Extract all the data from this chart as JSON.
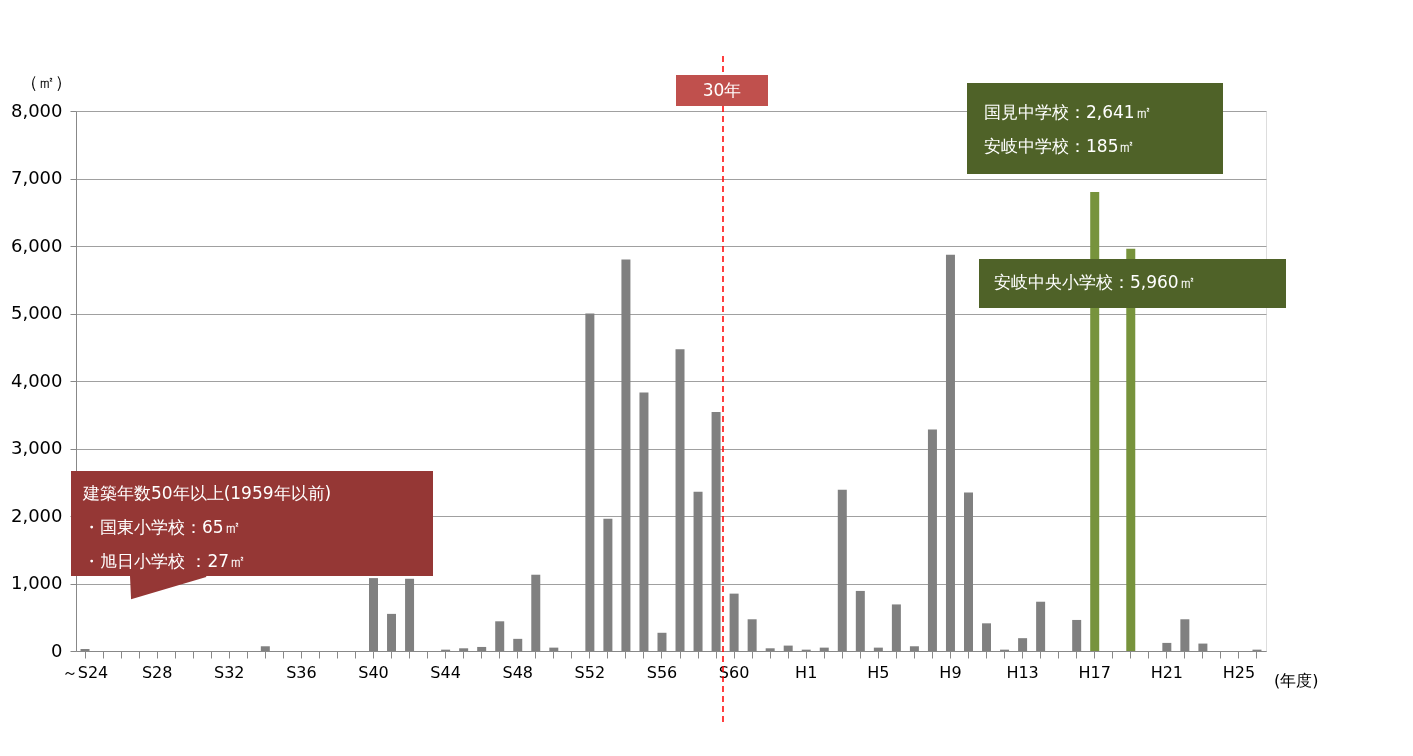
{
  "chart_data": {
    "type": "bar",
    "ylabel": "（㎡）",
    "xlabel": "(年度)",
    "categories": [
      "～S24",
      null,
      null,
      null,
      "S28",
      null,
      null,
      null,
      "S32",
      null,
      null,
      null,
      "S36",
      null,
      null,
      null,
      "S40",
      null,
      null,
      null,
      "S44",
      null,
      null,
      null,
      "S48",
      null,
      null,
      null,
      "S52",
      null,
      null,
      null,
      "S56",
      null,
      null,
      null,
      "S60",
      null,
      null,
      null,
      "H1",
      null,
      null,
      null,
      "H5",
      null,
      null,
      null,
      "H9",
      null,
      null,
      null,
      "H13",
      null,
      null,
      null,
      "H17",
      null,
      null,
      null,
      "H21",
      null,
      null,
      null,
      "H25",
      null
    ],
    "values": [
      30,
      0,
      0,
      0,
      0,
      0,
      0,
      0,
      0,
      0,
      70,
      0,
      0,
      0,
      0,
      0,
      1080,
      550,
      1070,
      0,
      20,
      40,
      60,
      440,
      180,
      1130,
      50,
      0,
      5000,
      1960,
      5800,
      3830,
      270,
      4470,
      2360,
      3540,
      850,
      470,
      40,
      80,
      20,
      50,
      2390,
      890,
      50,
      690,
      70,
      3280,
      5870,
      2350,
      410,
      20,
      190,
      730,
      0,
      460,
      6800,
      0,
      5960,
      0,
      120,
      470,
      110,
      0,
      0,
      20
    ],
    "colors": [
      "#808080",
      "#808080",
      "#808080",
      "#808080",
      "#808080",
      "#808080",
      "#808080",
      "#808080",
      "#808080",
      "#808080",
      "#808080",
      "#808080",
      "#808080",
      "#808080",
      "#808080",
      "#808080",
      "#808080",
      "#808080",
      "#808080",
      "#808080",
      "#808080",
      "#808080",
      "#808080",
      "#808080",
      "#808080",
      "#808080",
      "#808080",
      "#808080",
      "#808080",
      "#808080",
      "#808080",
      "#808080",
      "#808080",
      "#808080",
      "#808080",
      "#808080",
      "#808080",
      "#808080",
      "#808080",
      "#808080",
      "#808080",
      "#808080",
      "#808080",
      "#808080",
      "#808080",
      "#808080",
      "#808080",
      "#808080",
      "#808080",
      "#808080",
      "#808080",
      "#808080",
      "#808080",
      "#808080",
      "#808080",
      "#808080",
      "#77933c",
      "#808080",
      "#77933c",
      "#808080",
      "#808080",
      "#808080",
      "#808080",
      "#808080",
      "#808080",
      "#808080"
    ],
    "ylim": [
      0,
      8000
    ],
    "yticks": [
      0,
      {
        "value": 1000,
        "label": "1,000"
      },
      {
        "value": 2000,
        "label": "2,000"
      },
      {
        "value": 3000,
        "label": "3,000"
      },
      {
        "value": 4000,
        "label": "4,000"
      },
      {
        "value": 5000,
        "label": "5,000"
      },
      {
        "value": 6000,
        "label": "6,000"
      },
      {
        "value": 7000,
        "label": "7,000"
      },
      {
        "value": 8000,
        "label": "8,000"
      }
    ],
    "grid": "y",
    "annotations": [
      "30年",
      "建築年数50年以上(1959年以前)",
      "・国東小学校：65㎡",
      "・旭日小学校 ：27㎡",
      "国見中学校：2,641㎡",
      "安岐中学校：185㎡",
      "安岐中央小学校：5,960㎡"
    ]
  }
}
